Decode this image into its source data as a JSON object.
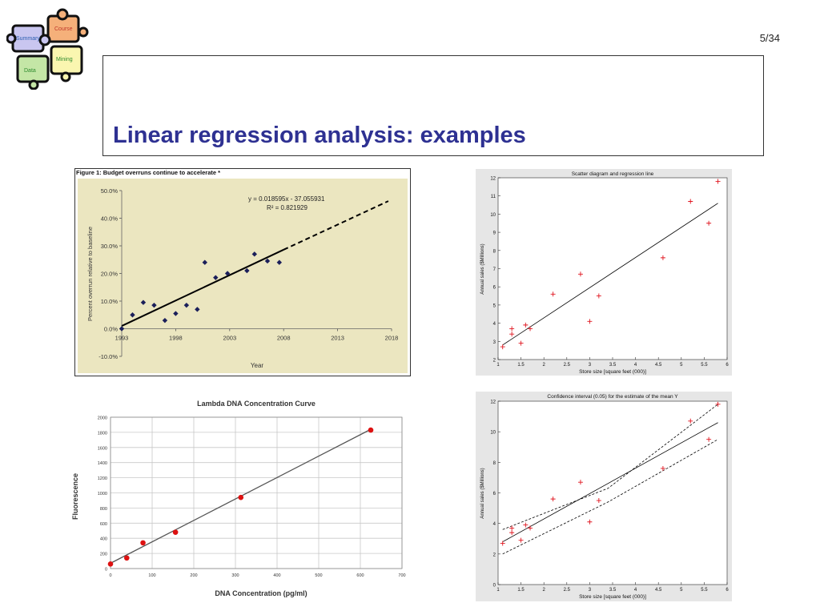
{
  "slide": {
    "page_number": "5/34",
    "title": "Linear regression analysis: examples",
    "logo_pieces": [
      "Course",
      "Summary",
      "Mining",
      "Data"
    ]
  },
  "chart_data": [
    {
      "type": "scatter",
      "title": "Figure 1: Budget overruns continue to accelerate *",
      "xlabel": "Year",
      "ylabel": "Percent overrun relative to baseline",
      "xlim": [
        1993,
        2018
      ],
      "ylim": [
        -10,
        50
      ],
      "x_ticks": [
        "1993",
        "1998",
        "2003",
        "2008",
        "2013",
        "2018"
      ],
      "y_ticks": [
        "50.0%",
        "40.0%",
        "30.0%",
        "20.0%",
        "10.0%",
        "0.0%",
        "-10.0%"
      ],
      "annotations": [
        "y = 0.018595x - 37.055931",
        "R² = 0.821929"
      ],
      "points": [
        {
          "x": 1993,
          "y": 0.0
        },
        {
          "x": 1994,
          "y": 5.0
        },
        {
          "x": 1995,
          "y": 9.5
        },
        {
          "x": 1996,
          "y": 8.5
        },
        {
          "x": 1997,
          "y": 3.0
        },
        {
          "x": 1998,
          "y": 5.5
        },
        {
          "x": 1999,
          "y": 8.5
        },
        {
          "x": 2000,
          "y": 7.0
        },
        {
          "x": 2000.7,
          "y": 24.0
        },
        {
          "x": 2001.7,
          "y": 18.5
        },
        {
          "x": 2002.8,
          "y": 20.0
        },
        {
          "x": 2004.6,
          "y": 21.0
        },
        {
          "x": 2005.3,
          "y": 27.0
        },
        {
          "x": 2006.5,
          "y": 24.5
        },
        {
          "x": 2007.6,
          "y": 24.0
        }
      ],
      "fit_solid": [
        [
          1993,
          1.0
        ],
        [
          2008,
          28.6
        ]
      ],
      "fit_dashed": [
        [
          2008,
          28.6
        ],
        [
          2017.7,
          46.2
        ]
      ],
      "background": "#ebe6c0"
    },
    {
      "type": "scatter",
      "title": "Scatter diagram and regression line",
      "xlabel": "Store size [square feet (000)]",
      "ylabel": "Annual sales ($Millions)",
      "xlim": [
        1,
        6
      ],
      "ylim": [
        2,
        12
      ],
      "x_ticks": [
        "1",
        "1.5",
        "2",
        "2.5",
        "3",
        "3.5",
        "4",
        "4.5",
        "5",
        "5.5",
        "6"
      ],
      "y_ticks": [
        "2",
        "3",
        "4",
        "5",
        "6",
        "7",
        "8",
        "9",
        "10",
        "11",
        "12"
      ],
      "points": [
        {
          "x": 1.1,
          "y": 2.7
        },
        {
          "x": 1.3,
          "y": 3.7
        },
        {
          "x": 1.3,
          "y": 3.4
        },
        {
          "x": 1.5,
          "y": 2.9
        },
        {
          "x": 1.6,
          "y": 3.9
        },
        {
          "x": 1.7,
          "y": 3.7
        },
        {
          "x": 2.2,
          "y": 5.6
        },
        {
          "x": 2.8,
          "y": 6.7
        },
        {
          "x": 3.0,
          "y": 4.1
        },
        {
          "x": 3.2,
          "y": 5.5
        },
        {
          "x": 4.6,
          "y": 7.6
        },
        {
          "x": 5.2,
          "y": 10.7
        },
        {
          "x": 5.6,
          "y": 9.5
        },
        {
          "x": 5.8,
          "y": 11.8
        }
      ],
      "fit": [
        [
          1.1,
          2.8
        ],
        [
          5.8,
          10.6
        ]
      ]
    },
    {
      "type": "scatter",
      "title": "Lambda DNA Concentration Curve",
      "xlabel": "DNA Concentration (pg/ml)",
      "ylabel": "Fluorescence",
      "xlim": [
        0,
        700
      ],
      "ylim": [
        0,
        2000
      ],
      "x_ticks": [
        "0",
        "100",
        "200",
        "300",
        "400",
        "500",
        "600",
        "700"
      ],
      "y_ticks": [
        "0",
        "200",
        "400",
        "600",
        "800",
        "1000",
        "1200",
        "1400",
        "1600",
        "1800",
        "2000"
      ],
      "points": [
        {
          "x": 0,
          "y": 60
        },
        {
          "x": 39,
          "y": 140
        },
        {
          "x": 78,
          "y": 340
        },
        {
          "x": 156,
          "y": 480
        },
        {
          "x": 313,
          "y": 940
        },
        {
          "x": 625,
          "y": 1830
        }
      ],
      "fit": [
        [
          0,
          70
        ],
        [
          625,
          1840
        ]
      ],
      "point_color": "#dd1111"
    },
    {
      "type": "line",
      "title": "Confidence interval (0.05) for the estimate of the mean Y",
      "xlabel": "Store size [square feet (000)]",
      "ylabel": "Annual sales ($Millions)",
      "xlim": [
        1,
        6
      ],
      "ylim": [
        0,
        12
      ],
      "x_ticks": [
        "1",
        "1.5",
        "2",
        "2.5",
        "3",
        "3.5",
        "4",
        "4.5",
        "5",
        "5.5",
        "6"
      ],
      "y_ticks": [
        "0",
        "2",
        "4",
        "6",
        "8",
        "10",
        "12"
      ],
      "points": [
        {
          "x": 1.1,
          "y": 2.7
        },
        {
          "x": 1.3,
          "y": 3.7
        },
        {
          "x": 1.3,
          "y": 3.4
        },
        {
          "x": 1.5,
          "y": 2.9
        },
        {
          "x": 1.6,
          "y": 3.9
        },
        {
          "x": 1.7,
          "y": 3.7
        },
        {
          "x": 2.2,
          "y": 5.6
        },
        {
          "x": 2.8,
          "y": 6.7
        },
        {
          "x": 3.0,
          "y": 4.1
        },
        {
          "x": 3.2,
          "y": 5.5
        },
        {
          "x": 4.6,
          "y": 7.6
        },
        {
          "x": 5.2,
          "y": 10.7
        },
        {
          "x": 5.6,
          "y": 9.5
        },
        {
          "x": 5.8,
          "y": 11.8
        }
      ],
      "fit": [
        [
          1.1,
          2.8
        ],
        [
          5.8,
          10.6
        ]
      ],
      "upper_band": [
        [
          1.1,
          3.6
        ],
        [
          3.4,
          6.3
        ],
        [
          5.8,
          11.8
        ]
      ],
      "lower_band": [
        [
          1.1,
          2.0
        ],
        [
          3.4,
          5.4
        ],
        [
          5.8,
          9.5
        ]
      ]
    }
  ]
}
